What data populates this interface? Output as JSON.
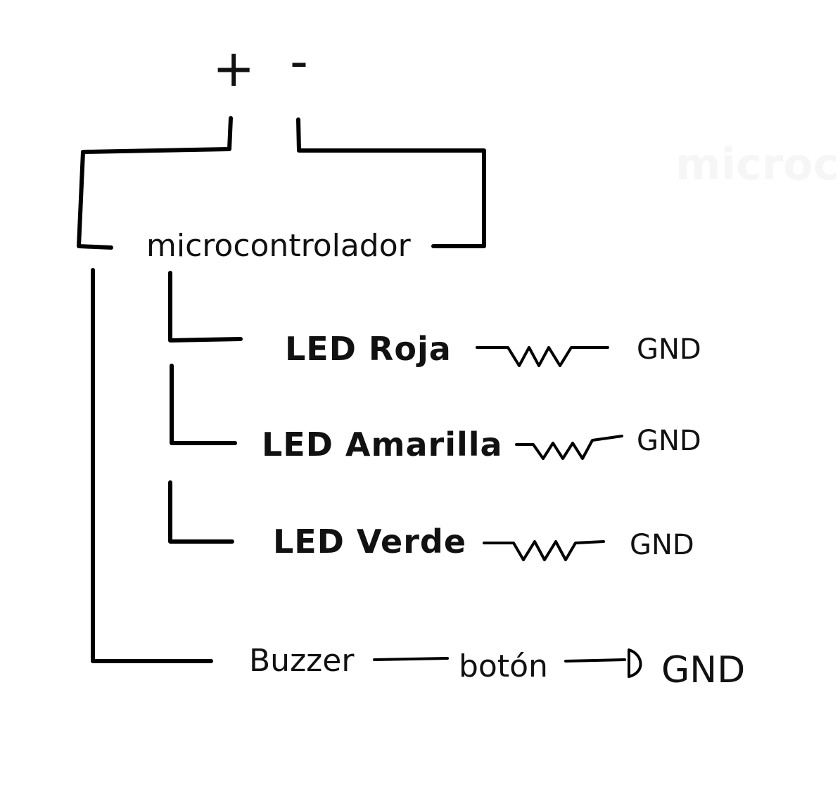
{
  "diagram": {
    "supply": {
      "plus": "+",
      "minus": "-"
    },
    "controller": "microcontrolador",
    "branches": [
      {
        "label": "LED Roja",
        "ground": "GND"
      },
      {
        "label": "LED Amarilla",
        "ground": "GND"
      },
      {
        "label": "LED Verde",
        "ground": "GND"
      }
    ],
    "buzzer": {
      "label": "Buzzer",
      "button": "botón",
      "ground": "GND"
    },
    "watermark": "microcontr"
  },
  "colors": {
    "ink": "#000000",
    "background": "#ffffff"
  }
}
